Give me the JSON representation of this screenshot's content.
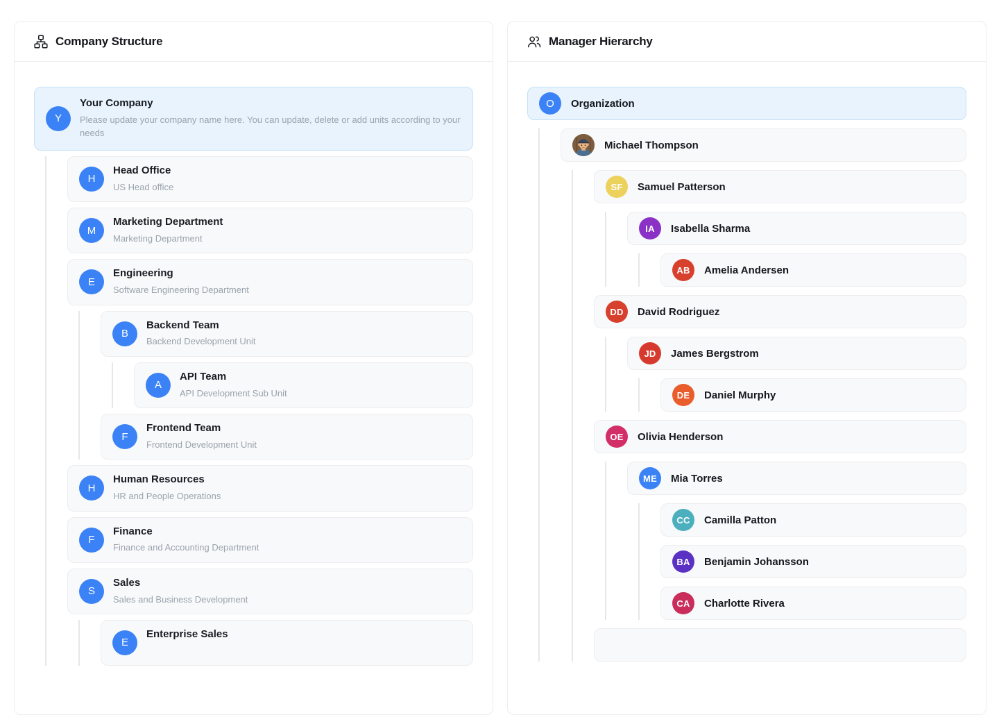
{
  "theme": {
    "accent": "#3b82f6",
    "highlight_bg": "#e8f3fd",
    "highlight_border": "#c5e1f7",
    "card_bg": "#f8f9fa",
    "card_border": "#ededf0",
    "guide_line": "#e7e7eb"
  },
  "panels": {
    "left": {
      "title": "Company Structure",
      "icon": "org-chart-icon",
      "tree": {
        "title": "Your Company",
        "subtitle": "Please update your company name here. You can update, delete or add units according to your needs",
        "avatar": "Y",
        "highlighted": true,
        "children": [
          {
            "title": "Head Office",
            "subtitle": "US Head office",
            "avatar": "H"
          },
          {
            "title": "Marketing Department",
            "subtitle": "Marketing Department",
            "avatar": "M"
          },
          {
            "title": "Engineering",
            "subtitle": "Software Engineering Department",
            "avatar": "E",
            "children": [
              {
                "title": "Backend Team",
                "subtitle": "Backend Development Unit",
                "avatar": "B",
                "children": [
                  {
                    "title": "API Team",
                    "subtitle": "API Development Sub Unit",
                    "avatar": "A"
                  }
                ]
              },
              {
                "title": "Frontend Team",
                "subtitle": "Frontend Development Unit",
                "avatar": "F"
              }
            ]
          },
          {
            "title": "Human Resources",
            "subtitle": "HR and People Operations",
            "avatar": "H"
          },
          {
            "title": "Finance",
            "subtitle": "Finance and Accounting Department",
            "avatar": "F"
          },
          {
            "title": "Sales",
            "subtitle": "Sales and Business Development",
            "avatar": "S",
            "children": [
              {
                "title": "Enterprise Sales",
                "subtitle": "",
                "avatar": "E"
              }
            ]
          }
        ]
      }
    },
    "right": {
      "title": "Manager Hierarchy",
      "icon": "people-icon",
      "tree": {
        "name": "Organization",
        "initials": "O",
        "color": "#3b82f6",
        "highlighted": true,
        "children": [
          {
            "name": "Michael Thompson",
            "photo": "man-with-cap",
            "children": [
              {
                "name": "Samuel Patterson",
                "initials": "SF",
                "color": "#edd15d",
                "children": [
                  {
                    "name": "Isabella Sharma",
                    "initials": "IA",
                    "color": "#8b31c6",
                    "children": [
                      {
                        "name": "Amelia Andersen",
                        "initials": "AB",
                        "color": "#d8402e"
                      }
                    ]
                  }
                ]
              },
              {
                "name": "David Rodriguez",
                "initials": "DD",
                "color": "#d8402e",
                "children": [
                  {
                    "name": "James Bergstrom",
                    "initials": "JD",
                    "color": "#d63a2e",
                    "children": [
                      {
                        "name": "Daniel Murphy",
                        "initials": "DE",
                        "color": "#e95c2b"
                      }
                    ]
                  }
                ]
              },
              {
                "name": "Olivia Henderson",
                "initials": "OE",
                "color": "#d22e67",
                "children": [
                  {
                    "name": "Mia Torres",
                    "initials": "ME",
                    "color": "#3b82f6",
                    "children": [
                      {
                        "name": "Camilla Patton",
                        "initials": "CC",
                        "color": "#4bafbe"
                      },
                      {
                        "name": "Benjamin Johansson",
                        "initials": "BA",
                        "color": "#5a31c2"
                      },
                      {
                        "name": "Charlotte Rivera",
                        "initials": "CA",
                        "color": "#c92d5b"
                      }
                    ]
                  }
                ]
              },
              {
                "name": "",
                "initials": "",
                "color": "",
                "partial": true
              }
            ]
          }
        ]
      }
    }
  }
}
